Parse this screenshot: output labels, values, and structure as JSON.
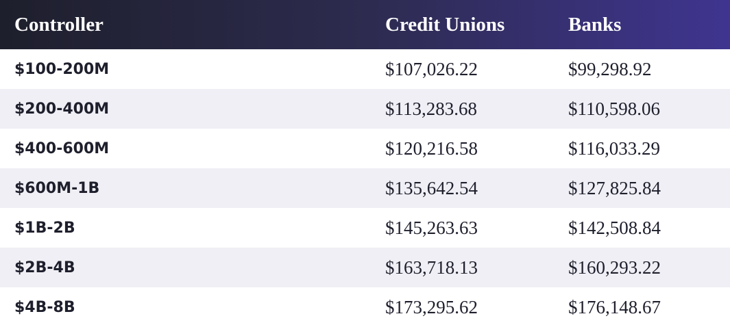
{
  "table": {
    "header": [
      "Controller",
      "Credit Unions",
      "Banks"
    ],
    "rows": [
      [
        "$100-200M",
        "$107,026.22",
        "$99,298.92"
      ],
      [
        "$200-400M",
        "$113,283.68",
        "$110,598.06"
      ],
      [
        "$400-600M",
        "$120,216.58",
        "$116,033.29"
      ],
      [
        "$600M-1B",
        "$135,642.54",
        "$127,825.84"
      ],
      [
        "$1B-2B",
        "$145,263.63",
        "$142,508.84"
      ],
      [
        "$2B-4B",
        "$163,718.13",
        "$160,293.22"
      ],
      [
        "$4B-8B",
        "$173,295.62",
        "$176,148.67"
      ]
    ]
  }
}
